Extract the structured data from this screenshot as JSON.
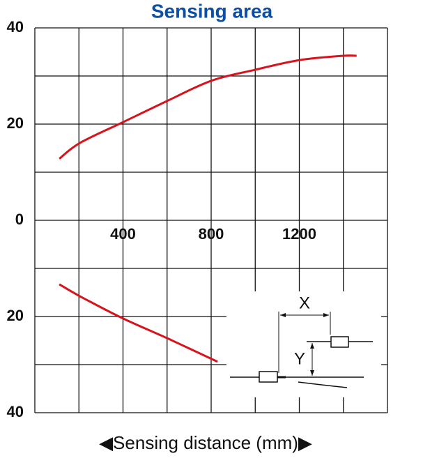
{
  "chart_data": {
    "type": "line",
    "title": "Sensing area",
    "x_label": "◀Sensing distance (mm)▶",
    "xlim": [
      0,
      1600
    ],
    "xticks": [
      400,
      800,
      1200
    ],
    "xgrid": [
      0,
      200,
      400,
      600,
      800,
      1000,
      1200,
      1400,
      1600
    ],
    "ylim": [
      -40,
      40
    ],
    "yticks": [
      40,
      20,
      0,
      {
        "value": -20,
        "label": "20"
      },
      {
        "value": -40,
        "label": "40"
      }
    ],
    "ygrid": [
      -40,
      -30,
      -20,
      -10,
      0,
      10,
      20,
      30,
      40
    ],
    "grid": true,
    "annotations": [
      "X",
      "Y"
    ],
    "series": [
      {
        "color": "#d7141e",
        "x": [
          111,
          205,
          400,
          600,
          800,
          1000,
          1200,
          1400,
          1460
        ],
        "values": [
          12.8,
          16.1,
          20.4,
          24.8,
          29,
          31.3,
          33.3,
          34.2,
          34.2
        ]
      },
      {
        "color": "#d7141e",
        "x": [
          111,
          205,
          400,
          600,
          829
        ],
        "values": [
          -13.3,
          -15.8,
          -20.4,
          -24.5,
          -29.4
        ]
      }
    ]
  }
}
